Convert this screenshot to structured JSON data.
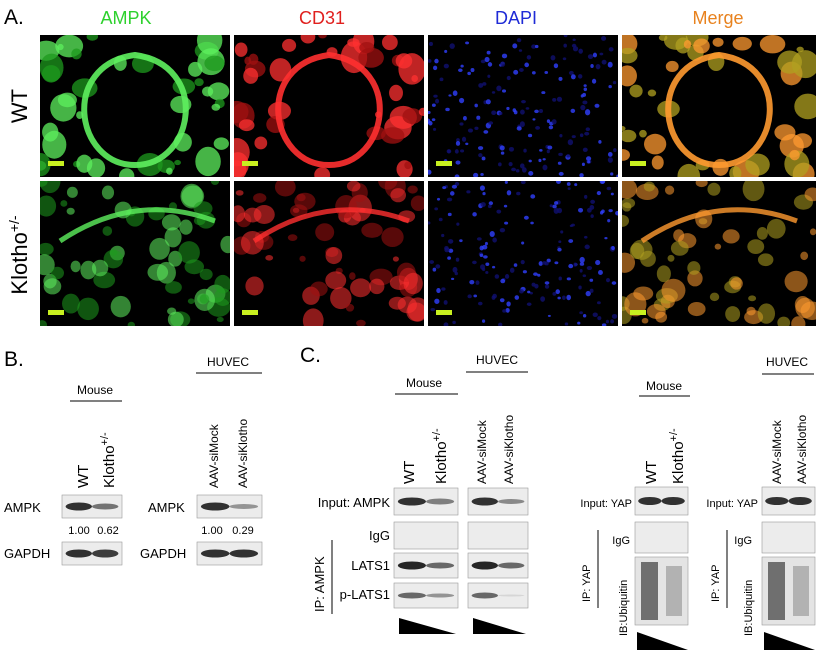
{
  "panel_a": {
    "label": "A.",
    "columns": [
      "AMPK",
      "CD31",
      "DAPI",
      "Merge"
    ],
    "rows": [
      "WT",
      {
        "base": "Klotho",
        "sup": "+/-"
      }
    ]
  },
  "panel_b": {
    "label": "B.",
    "mouse": {
      "group": "Mouse",
      "lanes": [
        "WT",
        {
          "base": "Klotho",
          "sup": "+/-"
        }
      ],
      "blots": [
        "AMPK",
        "GAPDH"
      ],
      "quant": [
        "1.00",
        "0.62"
      ]
    },
    "huvec": {
      "group": "HUVEC",
      "lanes": [
        "AAV-siMock",
        "AAV-siKlotho"
      ],
      "blots": [
        "AMPK",
        "GAPDH"
      ],
      "quant": [
        "1.00",
        "0.29"
      ]
    }
  },
  "panel_c": {
    "label": "C.",
    "ampk": {
      "mouse_group": "Mouse",
      "mouse_lanes": [
        "WT",
        {
          "base": "Klotho",
          "sup": "+/-"
        }
      ],
      "huvec_group": "HUVEC",
      "huvec_lanes": [
        "AAV-siMock",
        "AAV-siKlotho"
      ],
      "rows": [
        "Input: AMPK",
        "IgG",
        "LATS1",
        "p-LATS1"
      ],
      "ip": "IP: AMPK"
    },
    "yap_mouse": {
      "group": "Mouse",
      "lanes": [
        "WT",
        {
          "base": "Klotho",
          "sup": "+/-"
        }
      ],
      "input": "Input: YAP",
      "igg": "IgG",
      "ip": "IP: YAP",
      "ib": "IB:Ubiquitin"
    },
    "yap_huvec": {
      "group": "HUVEC",
      "lanes": [
        "AAV-siMock",
        "AAV-siKlotho"
      ],
      "input": "Input: YAP",
      "igg": "IgG",
      "ip": "IP: YAP",
      "ib": "IB:Ubiquitin"
    }
  }
}
